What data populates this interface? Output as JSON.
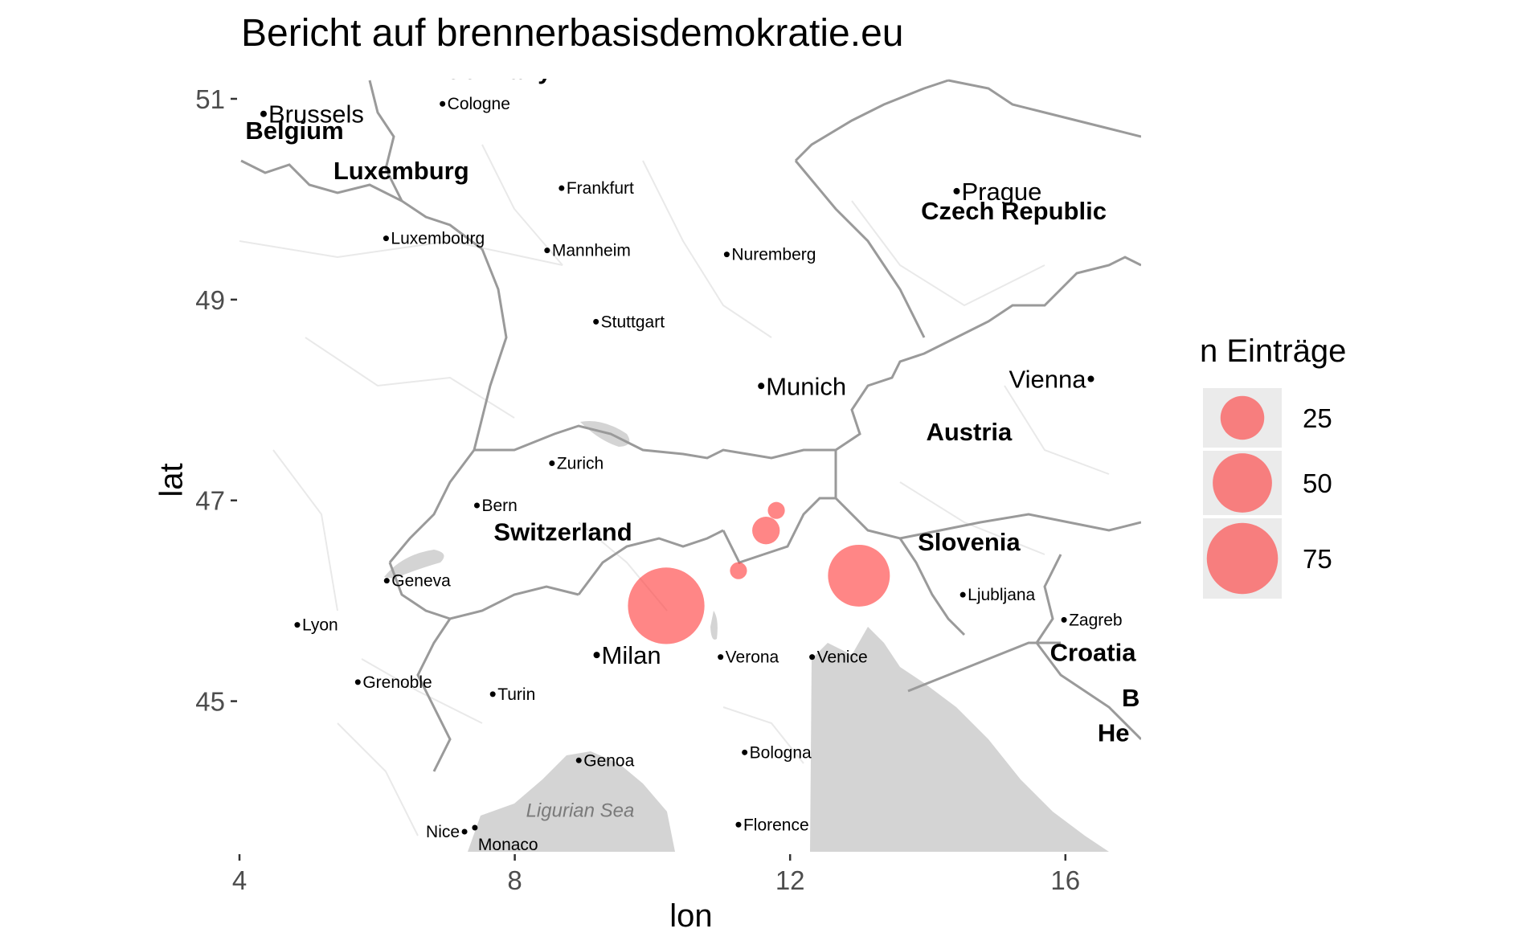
{
  "chart_data": {
    "type": "scatter",
    "title": "Bericht auf brennerbasisdemokratie.eu",
    "xlabel": "lon",
    "ylabel": "lat",
    "xlim": [
      4.0,
      17.1
    ],
    "ylim": [
      43.5,
      51.2
    ],
    "x_ticks": [
      4,
      8,
      12,
      16
    ],
    "y_ticks": [
      45,
      47,
      49,
      51
    ],
    "legend": {
      "title": "n Einträge",
      "position": "right",
      "entries": [
        {
          "label": "25",
          "value": 25
        },
        {
          "label": "50",
          "value": 50
        },
        {
          "label": "75",
          "value": 75
        }
      ]
    },
    "point_color": "#ff3b3b",
    "series": [
      {
        "points": [
          {
            "lon": 10.2,
            "lat": 45.95,
            "n": 88
          },
          {
            "lon": 13.0,
            "lat": 46.25,
            "n": 55
          },
          {
            "lon": 11.65,
            "lat": 46.7,
            "n": 8
          },
          {
            "lon": 11.8,
            "lat": 46.9,
            "n": 2
          },
          {
            "lon": 11.25,
            "lat": 46.3,
            "n": 2
          }
        ]
      }
    ]
  },
  "basemap": {
    "countries": [
      {
        "name": "Germany",
        "lon": 7.75,
        "lat": 51.2
      },
      {
        "name": "Belgium",
        "lon": 4.8,
        "lat": 50.6
      },
      {
        "name": "Luxemburg",
        "lon": 6.35,
        "lat": 50.2
      },
      {
        "name": "Czech Republic",
        "lon": 15.25,
        "lat": 49.8
      },
      {
        "name": "Austria",
        "lon": 14.6,
        "lat": 47.6
      },
      {
        "name": "Switzerland",
        "lon": 8.7,
        "lat": 46.6
      },
      {
        "name": "Slovenia",
        "lon": 14.6,
        "lat": 46.5
      },
      {
        "name": "Croatia",
        "lon": 16.4,
        "lat": 45.4
      },
      {
        "name": "B",
        "lon": 16.95,
        "lat": 44.95
      },
      {
        "name": "He",
        "lon": 16.7,
        "lat": 44.6
      }
    ],
    "cities": [
      {
        "name": "Brussels",
        "lon": 4.35,
        "lat": 50.85,
        "major": true
      },
      {
        "name": "Cologne",
        "lon": 6.95,
        "lat": 50.95,
        "major": false
      },
      {
        "name": "Frankfurt",
        "lon": 8.68,
        "lat": 50.11,
        "major": false
      },
      {
        "name": "Luxembourg",
        "lon": 6.13,
        "lat": 49.61,
        "major": false
      },
      {
        "name": "Mannheim",
        "lon": 8.47,
        "lat": 49.49,
        "major": false
      },
      {
        "name": "Nuremberg",
        "lon": 11.08,
        "lat": 49.45,
        "major": false
      },
      {
        "name": "Prague",
        "lon": 14.42,
        "lat": 50.08,
        "major": true
      },
      {
        "name": "Stuttgart",
        "lon": 9.18,
        "lat": 48.78,
        "major": false
      },
      {
        "name": "Munich",
        "lon": 11.58,
        "lat": 48.14,
        "major": true
      },
      {
        "name": "Vienna",
        "lon": 16.37,
        "lat": 48.21,
        "major": true,
        "label_left": true
      },
      {
        "name": "Zurich",
        "lon": 8.54,
        "lat": 47.37,
        "major": false
      },
      {
        "name": "Bern",
        "lon": 7.45,
        "lat": 46.95,
        "major": false
      },
      {
        "name": "Geneva",
        "lon": 6.14,
        "lat": 46.2,
        "major": false
      },
      {
        "name": "Lyon",
        "lon": 4.84,
        "lat": 45.76,
        "major": false
      },
      {
        "name": "Milan",
        "lon": 9.19,
        "lat": 45.46,
        "major": true
      },
      {
        "name": "Verona",
        "lon": 10.99,
        "lat": 45.44,
        "major": false
      },
      {
        "name": "Venice",
        "lon": 12.32,
        "lat": 45.44,
        "major": false
      },
      {
        "name": "Ljubljana",
        "lon": 14.51,
        "lat": 46.06,
        "major": false
      },
      {
        "name": "Zagreb",
        "lon": 15.98,
        "lat": 45.81,
        "major": false
      },
      {
        "name": "Grenoble",
        "lon": 5.72,
        "lat": 45.19,
        "major": false
      },
      {
        "name": "Turin",
        "lon": 7.68,
        "lat": 45.07,
        "major": false
      },
      {
        "name": "Genoa",
        "lon": 8.93,
        "lat": 44.41,
        "major": false
      },
      {
        "name": "Bologna",
        "lon": 11.34,
        "lat": 44.49,
        "major": false
      },
      {
        "name": "Florence",
        "lon": 11.25,
        "lat": 43.77,
        "major": false
      },
      {
        "name": "Nice",
        "lon": 7.27,
        "lat": 43.7,
        "major": false,
        "label_left": true
      },
      {
        "name": "Monaco",
        "lon": 7.42,
        "lat": 43.74,
        "major": false,
        "label_below": true
      }
    ],
    "water_labels": [
      {
        "name": "Ligurian Sea",
        "lon": 8.95,
        "lat": 43.85
      }
    ]
  }
}
